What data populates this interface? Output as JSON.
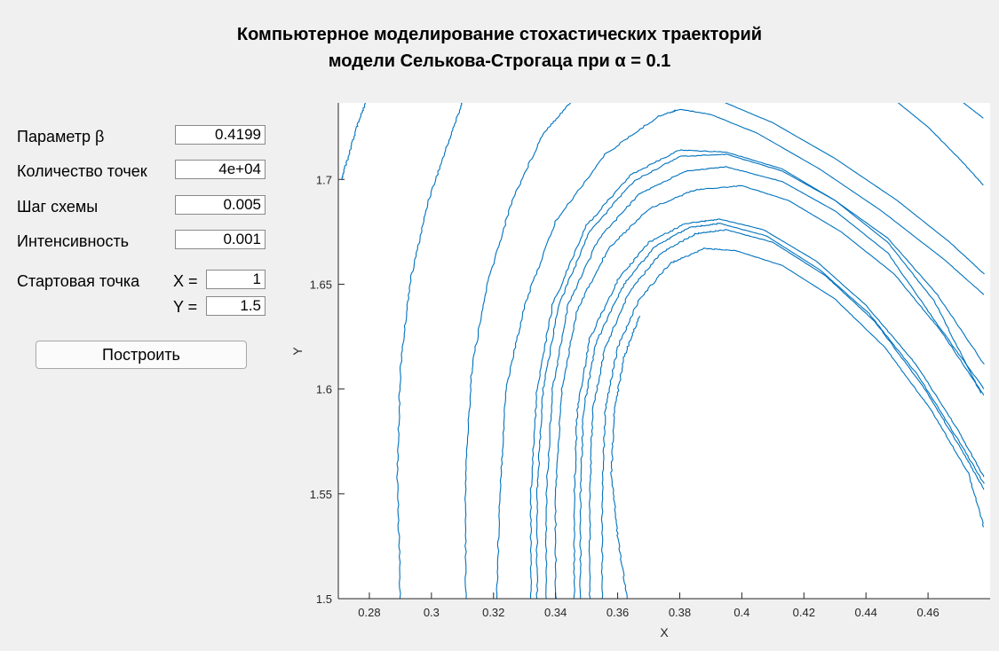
{
  "title": {
    "line1": "Компьютерное моделирование стохастических траекторий",
    "line2": "модели Селькова-Строгаца при α = 0.1"
  },
  "params": {
    "beta_label": "Параметр β",
    "beta_value": "0.4199",
    "points_label": "Количество точек",
    "points_value": "4e+04",
    "step_label": "Шаг схемы",
    "step_value": "0.005",
    "intensity_label": "Интенсивность",
    "intensity_value": "0.001",
    "start_label": "Стартовая точка",
    "x_label": "X =",
    "x_value": "1",
    "y_label": "Y =",
    "y_value": "1.5"
  },
  "build_button": "Построить",
  "chart_data": {
    "type": "line",
    "title": "",
    "xlabel": "X",
    "ylabel": "Y",
    "xlim": [
      0.27,
      0.48
    ],
    "ylim": [
      1.5,
      1.7365
    ],
    "xticks": [
      "0.28",
      "0.3",
      "0.32",
      "0.34",
      "0.36",
      "0.38",
      "0.4",
      "0.42",
      "0.44",
      "0.46"
    ],
    "yticks": [
      "1.5",
      "1.55",
      "1.6",
      "1.65",
      "1.7"
    ],
    "grid": false,
    "line_color": "#0072bd",
    "series": [
      {
        "values": [
          [
            0.271,
            1.7
          ],
          [
            0.273,
            1.71
          ],
          [
            0.276,
            1.725
          ],
          [
            0.279,
            1.737
          ]
        ]
      },
      {
        "values": [
          [
            0.29,
            1.5
          ],
          [
            0.289,
            1.56
          ],
          [
            0.29,
            1.61
          ],
          [
            0.293,
            1.65
          ],
          [
            0.299,
            1.69
          ],
          [
            0.306,
            1.72
          ],
          [
            0.31,
            1.737
          ]
        ]
      },
      {
        "values": [
          [
            0.311,
            1.5
          ],
          [
            0.311,
            1.56
          ],
          [
            0.313,
            1.61
          ],
          [
            0.318,
            1.65
          ],
          [
            0.326,
            1.69
          ],
          [
            0.336,
            1.722
          ],
          [
            0.345,
            1.737
          ]
        ]
      },
      {
        "values": [
          [
            0.321,
            1.5
          ],
          [
            0.322,
            1.55
          ],
          [
            0.324,
            1.6
          ],
          [
            0.33,
            1.64
          ],
          [
            0.34,
            1.68
          ],
          [
            0.356,
            1.712
          ],
          [
            0.373,
            1.73
          ],
          [
            0.38,
            1.7335
          ],
          [
            0.39,
            1.731
          ],
          [
            0.405,
            1.722
          ],
          [
            0.425,
            1.705
          ],
          [
            0.445,
            1.685
          ],
          [
            0.465,
            1.662
          ],
          [
            0.478,
            1.645
          ]
        ]
      },
      {
        "values": [
          [
            0.394,
            1.737
          ],
          [
            0.41,
            1.727
          ],
          [
            0.43,
            1.71
          ],
          [
            0.45,
            1.69
          ],
          [
            0.467,
            1.67
          ],
          [
            0.478,
            1.655
          ]
        ]
      },
      {
        "values": [
          [
            0.45,
            1.737
          ],
          [
            0.46,
            1.725
          ],
          [
            0.47,
            1.71
          ],
          [
            0.478,
            1.697
          ]
        ]
      },
      {
        "values": [
          [
            0.471,
            1.737
          ],
          [
            0.478,
            1.729
          ]
        ]
      },
      {
        "values": [
          [
            0.332,
            1.5
          ],
          [
            0.332,
            1.55
          ],
          [
            0.334,
            1.6
          ],
          [
            0.339,
            1.64
          ],
          [
            0.35,
            1.678
          ],
          [
            0.364,
            1.702
          ],
          [
            0.38,
            1.714
          ],
          [
            0.395,
            1.713
          ],
          [
            0.413,
            1.705
          ],
          [
            0.43,
            1.69
          ],
          [
            0.447,
            1.672
          ],
          [
            0.463,
            1.645
          ],
          [
            0.478,
            1.612
          ]
        ]
      },
      {
        "values": [
          [
            0.334,
            1.5
          ],
          [
            0.334,
            1.55
          ],
          [
            0.336,
            1.6
          ],
          [
            0.341,
            1.64
          ],
          [
            0.351,
            1.675
          ],
          [
            0.365,
            1.699
          ],
          [
            0.38,
            1.711
          ],
          [
            0.395,
            1.712
          ],
          [
            0.413,
            1.704
          ],
          [
            0.43,
            1.69
          ],
          [
            0.447,
            1.67
          ],
          [
            0.462,
            1.642
          ],
          [
            0.477,
            1.598
          ]
        ]
      },
      {
        "values": [
          [
            0.337,
            1.5
          ],
          [
            0.337,
            1.55
          ],
          [
            0.339,
            1.6
          ],
          [
            0.344,
            1.64
          ],
          [
            0.354,
            1.672
          ],
          [
            0.367,
            1.693
          ],
          [
            0.382,
            1.704
          ],
          [
            0.395,
            1.706
          ],
          [
            0.413,
            1.699
          ],
          [
            0.43,
            1.685
          ],
          [
            0.447,
            1.665
          ],
          [
            0.462,
            1.633
          ],
          [
            0.478,
            1.6
          ]
        ]
      },
      {
        "values": [
          [
            0.34,
            1.5
          ],
          [
            0.34,
            1.55
          ],
          [
            0.342,
            1.6
          ],
          [
            0.347,
            1.638
          ],
          [
            0.357,
            1.667
          ],
          [
            0.37,
            1.686
          ],
          [
            0.385,
            1.695
          ],
          [
            0.4,
            1.697
          ],
          [
            0.415,
            1.69
          ],
          [
            0.432,
            1.675
          ],
          [
            0.449,
            1.655
          ],
          [
            0.464,
            1.628
          ],
          [
            0.478,
            1.597
          ]
        ]
      },
      {
        "values": [
          [
            0.346,
            1.5
          ],
          [
            0.346,
            1.55
          ],
          [
            0.347,
            1.59
          ],
          [
            0.351,
            1.624
          ],
          [
            0.36,
            1.652
          ],
          [
            0.37,
            1.67
          ],
          [
            0.382,
            1.679
          ],
          [
            0.393,
            1.681
          ],
          [
            0.407,
            1.676
          ],
          [
            0.424,
            1.661
          ],
          [
            0.44,
            1.64
          ],
          [
            0.456,
            1.612
          ],
          [
            0.469,
            1.582
          ],
          [
            0.478,
            1.558
          ]
        ]
      },
      {
        "values": [
          [
            0.348,
            1.5
          ],
          [
            0.348,
            1.55
          ],
          [
            0.349,
            1.59
          ],
          [
            0.353,
            1.622
          ],
          [
            0.362,
            1.65
          ],
          [
            0.372,
            1.668
          ],
          [
            0.383,
            1.677
          ],
          [
            0.393,
            1.679
          ],
          [
            0.408,
            1.673
          ],
          [
            0.425,
            1.657
          ],
          [
            0.441,
            1.636
          ],
          [
            0.457,
            1.606
          ],
          [
            0.47,
            1.575
          ],
          [
            0.478,
            1.555
          ]
        ]
      },
      {
        "values": [
          [
            0.351,
            1.5
          ],
          [
            0.351,
            1.55
          ],
          [
            0.352,
            1.59
          ],
          [
            0.356,
            1.62
          ],
          [
            0.364,
            1.647
          ],
          [
            0.374,
            1.665
          ],
          [
            0.385,
            1.674
          ],
          [
            0.395,
            1.676
          ],
          [
            0.41,
            1.67
          ],
          [
            0.427,
            1.654
          ],
          [
            0.443,
            1.632
          ],
          [
            0.459,
            1.6
          ],
          [
            0.472,
            1.568
          ],
          [
            0.478,
            1.552
          ]
        ]
      },
      {
        "values": [
          [
            0.355,
            1.5
          ],
          [
            0.355,
            1.55
          ],
          [
            0.356,
            1.59
          ],
          [
            0.36,
            1.62
          ],
          [
            0.367,
            1.643
          ],
          [
            0.377,
            1.66
          ],
          [
            0.388,
            1.667
          ],
          [
            0.398,
            1.666
          ],
          [
            0.413,
            1.659
          ],
          [
            0.43,
            1.643
          ],
          [
            0.446,
            1.62
          ],
          [
            0.461,
            1.59
          ],
          [
            0.473,
            1.56
          ],
          [
            0.478,
            1.534
          ]
        ]
      },
      {
        "values": [
          [
            0.363,
            1.5
          ],
          [
            0.36,
            1.53
          ],
          [
            0.358,
            1.56
          ],
          [
            0.359,
            1.59
          ],
          [
            0.362,
            1.615
          ],
          [
            0.367,
            1.635
          ]
        ]
      }
    ]
  }
}
